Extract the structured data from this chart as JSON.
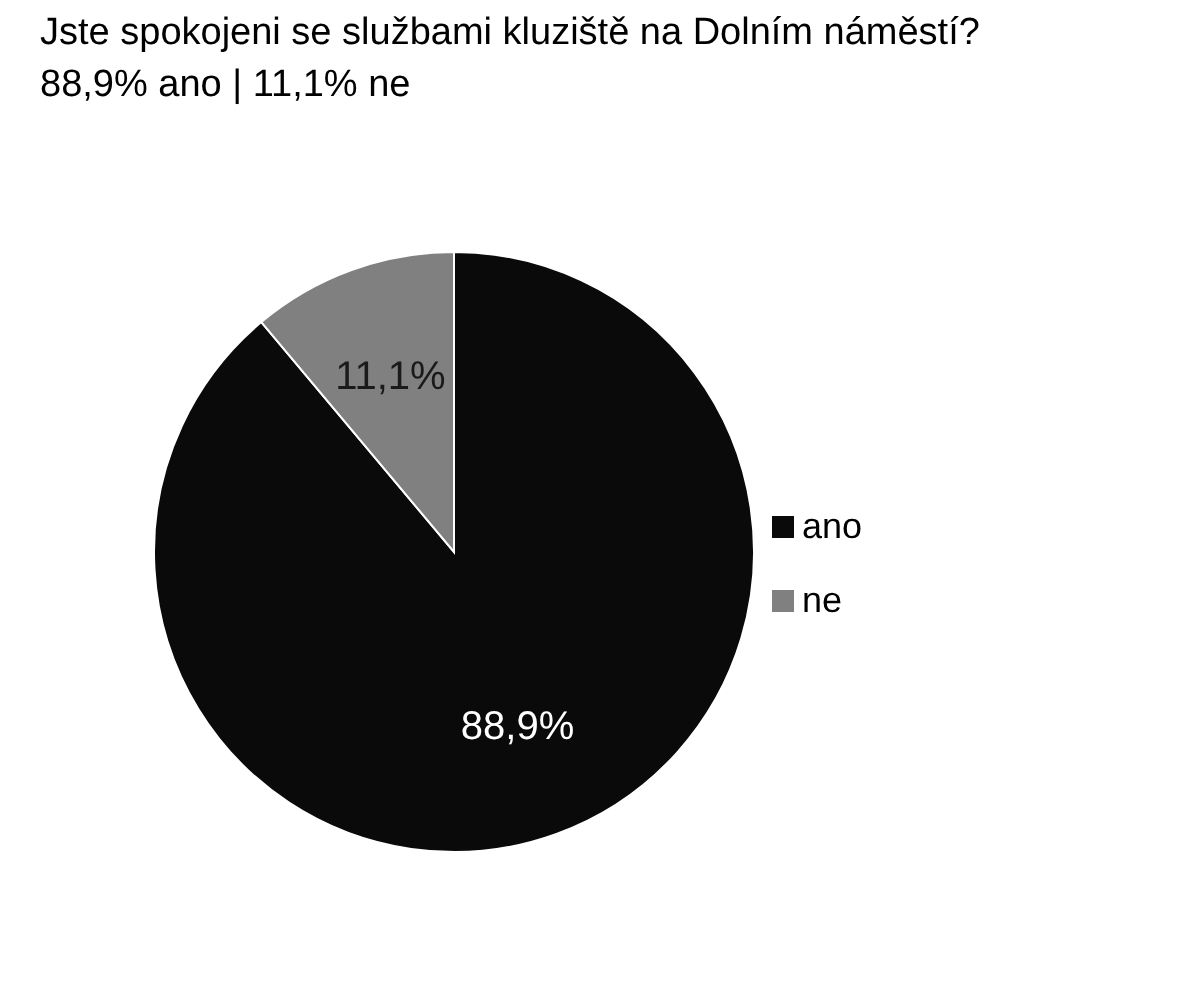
{
  "chart_data": {
    "type": "pie",
    "title": "Jste spokojeni se službami kluziště na Dolním náměstí?",
    "subtitle": "88,9% ano | 11,1% ne",
    "categories": [
      "ano",
      "ne"
    ],
    "values": [
      88.9,
      11.1
    ],
    "colors": [
      "#0a0a0a",
      "#808080"
    ],
    "value_labels": [
      "88,9%",
      "11,1%"
    ],
    "legend": "right"
  }
}
